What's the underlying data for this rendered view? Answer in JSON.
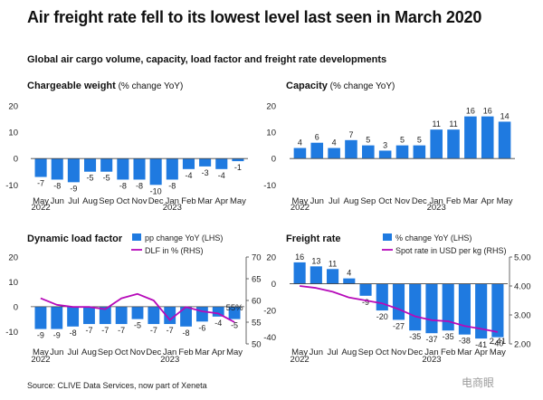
{
  "title": "Air freight rate fell to its lowest level last seen in March 2020",
  "subtitle": "Global air cargo volume, capacity, load factor and freight rate developments",
  "source": "Source: CLIVE Data Services, now part of Xeneta",
  "watermark": "电商眼",
  "colors": {
    "bar": "#1f7ae0",
    "line": "#b60ab9",
    "axis": "#444444",
    "text": "#222222"
  },
  "month_labels": [
    "May",
    "Jun",
    "Jul",
    "Aug",
    "Sep",
    "Oct",
    "Nov",
    "Dec",
    "Jan",
    "Feb",
    "Mar",
    "Apr",
    "May"
  ],
  "chart_data": [
    {
      "type": "bar",
      "title": "Chargeable weight",
      "title_note": "(% change YoY)",
      "categories": [
        "May 2022",
        "Jun",
        "Jul",
        "Aug",
        "Sep",
        "Oct",
        "Nov",
        "Dec",
        "Jan 2023",
        "Feb",
        "Mar",
        "Apr",
        "May"
      ],
      "year_labels": [
        "2022",
        "2023"
      ],
      "values": [
        -7,
        -8,
        -9,
        -5,
        -5,
        -8,
        -8,
        -10,
        -8,
        -4,
        -3,
        -4,
        -1
      ],
      "data_labels": [
        "-7",
        "-8",
        "-9",
        "-5",
        "-5",
        "-8",
        "-8",
        "-10",
        "-8",
        "-4",
        "-3",
        "-4",
        "-1"
      ],
      "ylim": [
        -13,
        20
      ],
      "yticks": [
        20,
        10,
        0,
        -10
      ]
    },
    {
      "type": "bar",
      "title": "Capacity",
      "title_note": "(% change YoY)",
      "categories": [
        "May 2022",
        "Jun",
        "Jul",
        "Aug",
        "Sep",
        "Oct",
        "Nov",
        "Dec",
        "Jan 2023",
        "Feb",
        "Mar",
        "Apr",
        "May"
      ],
      "year_labels": [
        "2022",
        "2023"
      ],
      "values": [
        4,
        6,
        4,
        7,
        5,
        3,
        5,
        5,
        11,
        11,
        16,
        16,
        14
      ],
      "data_labels": [
        "4",
        "6",
        "4",
        "7",
        "5",
        "3",
        "5",
        "5",
        "11",
        "11",
        "16",
        "16",
        "14"
      ],
      "ylim": [
        -13,
        20
      ],
      "yticks": [
        20,
        10,
        0,
        -10
      ]
    },
    {
      "type": "bar",
      "title": "Dynamic load factor",
      "categories": [
        "May 2022",
        "Jun",
        "Jul",
        "Aug",
        "Sep",
        "Oct",
        "Nov",
        "Dec",
        "Jan 2023",
        "Feb",
        "Mar",
        "Apr",
        "May"
      ],
      "year_labels": [
        "2022",
        "2023"
      ],
      "legend": [
        "pp change YoY (LHS)",
        "DLF in % (RHS)"
      ],
      "series": [
        {
          "name": "pp change YoY (LHS)",
          "type": "bar",
          "axis": "left",
          "values": [
            -9,
            -9,
            -8,
            -7,
            -7,
            -7,
            -5,
            -7,
            -7,
            -8,
            -6,
            -4,
            -5
          ],
          "data_labels": [
            "-9",
            "-9",
            "-8",
            "-7",
            "-7",
            "-7",
            "-5",
            "-7",
            "-7",
            "-8",
            "-6",
            "-4",
            "-5"
          ]
        },
        {
          "name": "DLF in % (RHS)",
          "type": "line",
          "axis": "right",
          "values": [
            60.5,
            59,
            58.5,
            58.5,
            58,
            60.5,
            61.5,
            60,
            55.5,
            58.5,
            57.5,
            57,
            55
          ]
        }
      ],
      "end_label": "55%",
      "ylim_left": [
        -15,
        20
      ],
      "yticks_left": [
        20,
        10,
        0,
        -10
      ],
      "ylim_right": [
        50,
        70
      ],
      "yticks_right": [
        70,
        65,
        60,
        55,
        50
      ]
    },
    {
      "type": "bar",
      "title": "Freight rate",
      "categories": [
        "May 2022",
        "Jun",
        "Jul",
        "Aug",
        "Sep",
        "Oct",
        "Nov",
        "Dec",
        "Jan 2023",
        "Feb",
        "Mar",
        "Apr",
        "May"
      ],
      "year_labels": [
        "2022",
        "2023"
      ],
      "legend": [
        "% change YoY (LHS)",
        "Spot rate in USD per kg (RHS)"
      ],
      "series": [
        {
          "name": "% change YoY (LHS)",
          "type": "bar",
          "axis": "left",
          "values": [
            16,
            13,
            11,
            4,
            -9,
            -20,
            -27,
            -35,
            -37,
            -35,
            -38,
            -41,
            -40
          ],
          "data_labels": [
            "16",
            "13",
            "11",
            "4",
            "-9",
            "-20",
            "-27",
            "-35",
            "-37",
            "-35",
            "-38",
            "-41",
            "-40"
          ]
        },
        {
          "name": "Spot rate in USD per kg (RHS)",
          "type": "line",
          "axis": "right",
          "values": [
            4.0,
            3.93,
            3.8,
            3.6,
            3.5,
            3.4,
            3.2,
            2.95,
            2.82,
            2.78,
            2.62,
            2.52,
            2.41
          ]
        }
      ],
      "end_label": "2.41",
      "ylim_left": [
        -45,
        20
      ],
      "yticks_left": [
        20,
        0,
        -20,
        -40
      ],
      "ylim_right": [
        2.0,
        5.0
      ],
      "yticks_right": [
        "5.00",
        "4.00",
        "3.00",
        "2.00"
      ]
    }
  ]
}
